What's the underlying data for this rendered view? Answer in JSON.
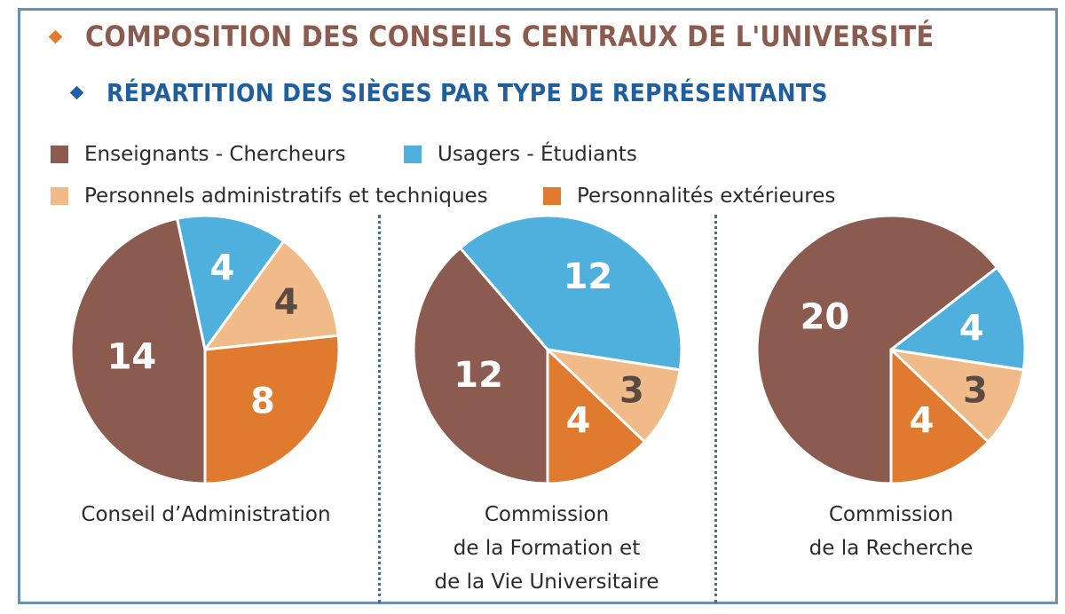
{
  "header": {
    "title": "COMPOSITION DES CONSEILS CENTRAUX DE L'UNIVERSITÉ",
    "subtitle": "RÉPARTITION DES SIÈGES PAR TYPE DE REPRÉSENTANTS",
    "title_bullet_color": "#e07a2e",
    "subtitle_bullet_color": "#1f5f9e"
  },
  "legend": [
    {
      "label": "Enseignants - Chercheurs",
      "color": "#8a5b4e"
    },
    {
      "label": "Usagers - Étudiants",
      "color": "#4fb0de"
    },
    {
      "label": "Personnels administratifs et techniques",
      "color": "#f0bb88"
    },
    {
      "label": "Personnalités extérieures",
      "color": "#e07a2e"
    }
  ],
  "chart_data": [
    {
      "type": "pie",
      "title_lines": [
        "Conseil d’Administration"
      ],
      "categories": [
        "Enseignants - Chercheurs",
        "Usagers - Étudiants",
        "Personnels administratifs et techniques",
        "Personnalités extérieures"
      ],
      "values": [
        14,
        4,
        4,
        8
      ],
      "colors": [
        "#8a5b4e",
        "#4fb0de",
        "#f0bb88",
        "#e07a2e"
      ],
      "start_angle_deg": 180
    },
    {
      "type": "pie",
      "title_lines": [
        "Commission",
        "de la Formation et",
        "de la Vie Universitaire"
      ],
      "categories": [
        "Enseignants - Chercheurs",
        "Usagers - Étudiants",
        "Personnels administratifs et techniques",
        "Personnalités extérieures"
      ],
      "values": [
        12,
        12,
        3,
        4
      ],
      "colors": [
        "#8a5b4e",
        "#4fb0de",
        "#f0bb88",
        "#e07a2e"
      ],
      "start_angle_deg": 180
    },
    {
      "type": "pie",
      "title_lines": [
        "Commission",
        "de la Recherche"
      ],
      "categories": [
        "Enseignants - Chercheurs",
        "Usagers - Étudiants",
        "Personnels administratifs et techniques",
        "Personnalités extérieures"
      ],
      "values": [
        20,
        4,
        3,
        4
      ],
      "colors": [
        "#8a5b4e",
        "#4fb0de",
        "#f0bb88",
        "#e07a2e"
      ],
      "start_angle_deg": 180
    }
  ]
}
